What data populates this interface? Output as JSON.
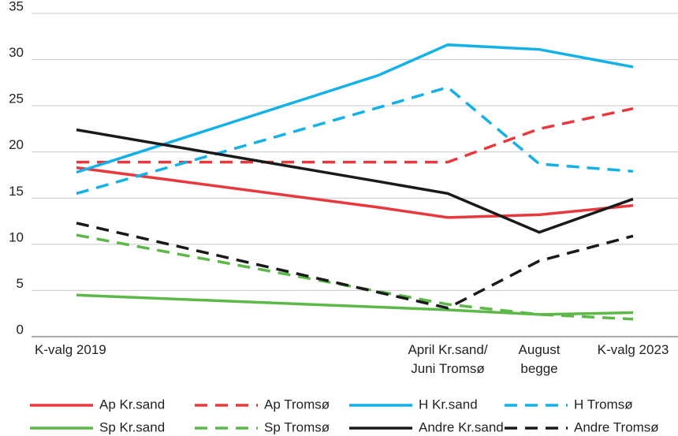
{
  "chart_data": {
    "type": "line",
    "categories": [
      "K-valg 2019",
      null,
      "April Kr.sand/ Juni Tromsø",
      "August begge",
      "K-valg 2023"
    ],
    "ylim": [
      0,
      35
    ],
    "yticks": [
      0,
      5,
      10,
      15,
      20,
      25,
      30,
      35
    ],
    "grid": true,
    "series": [
      {
        "name": "Ap Kr.sand",
        "color": "#e8383d",
        "dashed": false,
        "values": [
          18.3,
          14.0,
          12.9,
          13.2,
          14.2
        ]
      },
      {
        "name": "Ap Tromsø",
        "color": "#e8383d",
        "dashed": true,
        "values": [
          18.9,
          18.9,
          18.9,
          22.5,
          24.7
        ]
      },
      {
        "name": "H Kr.sand",
        "color": "#13b1e6",
        "dashed": false,
        "values": [
          17.8,
          28.3,
          31.6,
          31.1,
          29.2
        ]
      },
      {
        "name": "H Tromsø",
        "color": "#13b1e6",
        "dashed": true,
        "values": [
          15.5,
          24.8,
          27.0,
          18.7,
          17.9
        ]
      },
      {
        "name": "Sp Kr.sand",
        "color": "#5cb848",
        "dashed": false,
        "values": [
          4.5,
          3.2,
          2.9,
          2.4,
          2.6
        ]
      },
      {
        "name": "Sp Tromsø",
        "color": "#5cb848",
        "dashed": true,
        "values": [
          11.0,
          4.9,
          3.5,
          2.4,
          1.9
        ]
      },
      {
        "name": "Andre Kr.sand",
        "color": "#1a1a1a",
        "dashed": false,
        "values": [
          22.4,
          16.8,
          15.5,
          11.3,
          14.9
        ]
      },
      {
        "name": "Andre Tromsø",
        "color": "#1a1a1a",
        "dashed": true,
        "values": [
          12.3,
          4.8,
          3.1,
          8.2,
          10.9
        ]
      }
    ]
  }
}
